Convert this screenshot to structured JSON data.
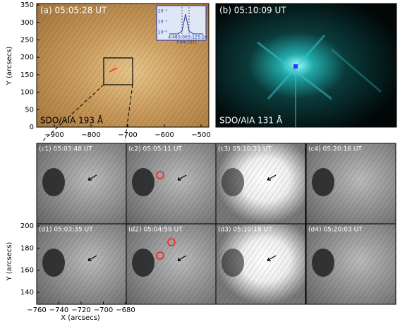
{
  "panel_a": {
    "label": "(a) 05:05:28 UT",
    "instrument": "SDO/AIA 193 Å",
    "inset": {
      "yticks": [
        "10⁻⁴",
        "10⁻⁵",
        "10⁻⁶"
      ],
      "xticks": [
        "4:48",
        "5:00",
        "5:12",
        "5:24"
      ],
      "xlabel": "Time (UT)"
    }
  },
  "panel_b": {
    "label": "(b) 05:10:09 UT",
    "instrument": "SDO/AIA 131 Å"
  },
  "top_axes": {
    "ylabel": "Y (arcsecs)",
    "yticks": [
      "0",
      "50",
      "100",
      "150",
      "200",
      "250",
      "300",
      "350"
    ],
    "xticks": [
      "−900",
      "−800",
      "−700",
      "−600",
      "−500"
    ]
  },
  "panels_c": [
    "(c1) 05:03:48 UT",
    "(c2) 05:05:11 UT",
    "(c3) 05:10:31 UT",
    "(c4) 05:20:16 UT"
  ],
  "panels_d": [
    "(d1) 05:03:35 UT",
    "(d2) 05:04:59 UT",
    "(d3) 05:10:18 UT",
    "(d4) 05:20:03 UT"
  ],
  "bottom_axes": {
    "ylabel": "Y (arcsecs)",
    "xlabel": "X (arcsecs)",
    "yticks": [
      "140",
      "160",
      "180",
      "200"
    ],
    "xticks": [
      "−760",
      "−740",
      "−720",
      "−700",
      "−680"
    ]
  }
}
